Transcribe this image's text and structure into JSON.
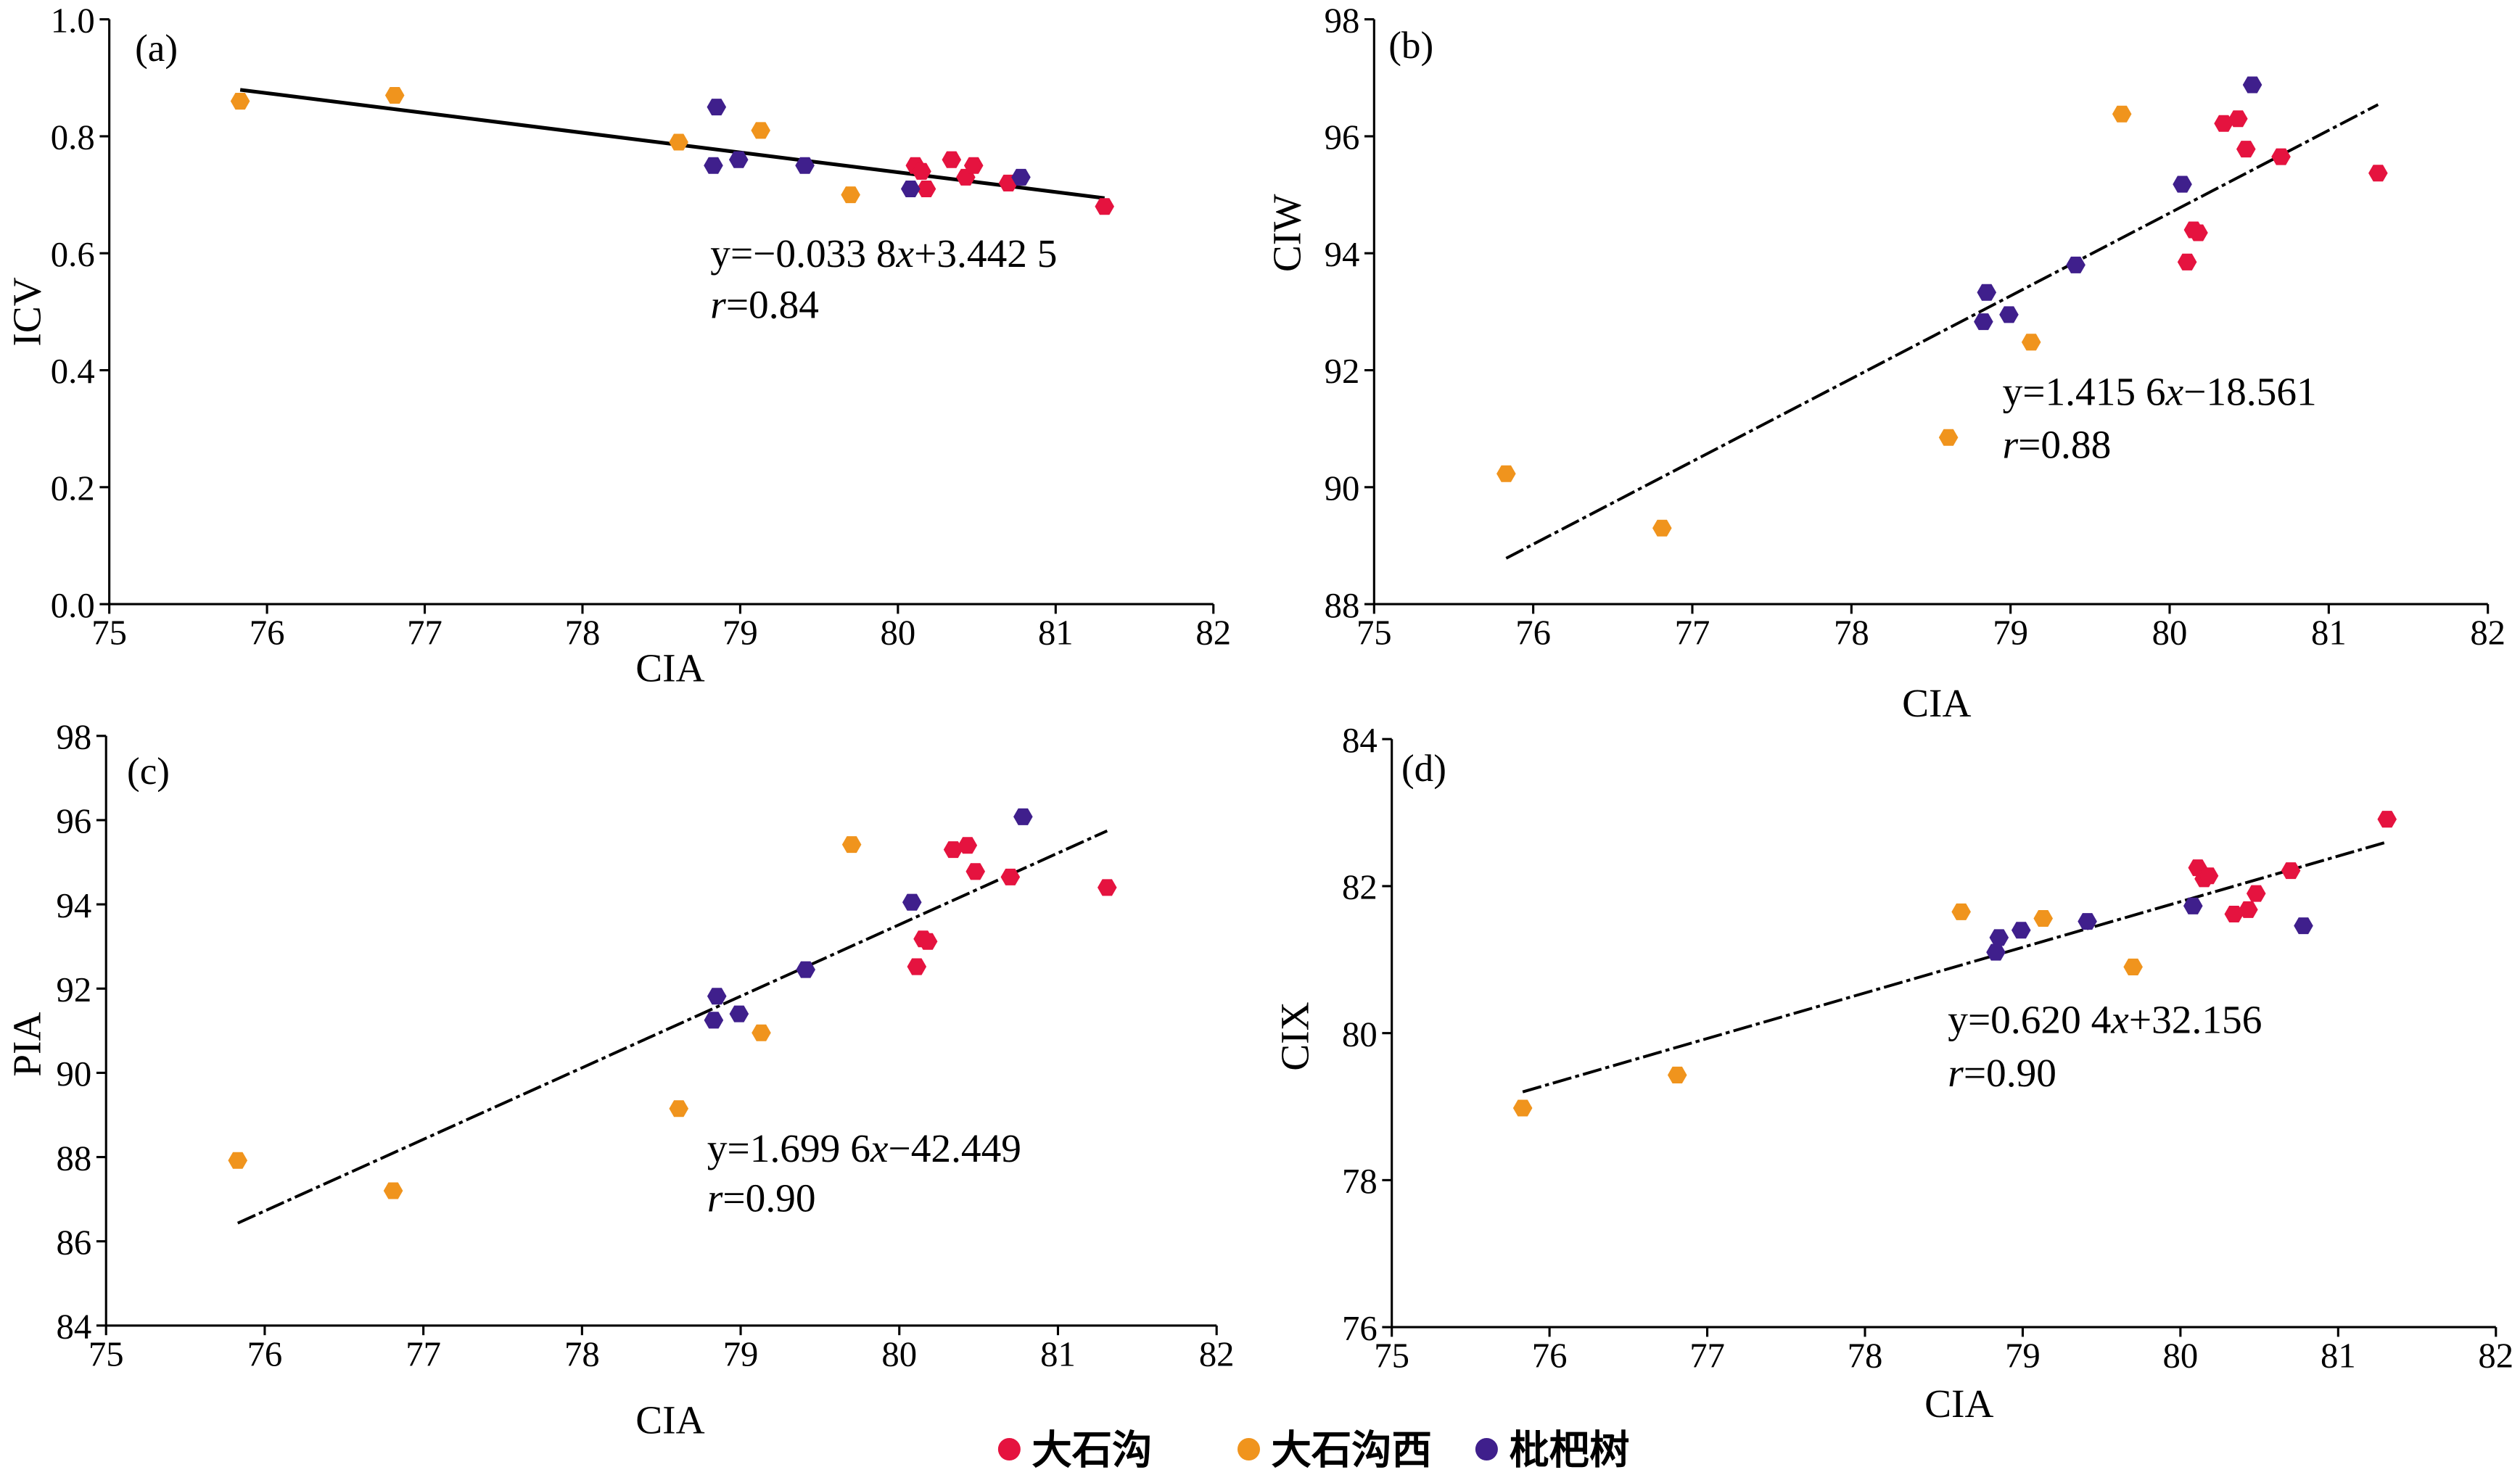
{
  "legend": {
    "position": "bottom",
    "items": [
      {
        "label": "大石沟",
        "color": "#E5133F"
      },
      {
        "label": "大石沟西",
        "color": "#F0941D"
      },
      {
        "label": "枇杷树",
        "color": "#3F1F8C"
      }
    ]
  },
  "chart_data": [
    {
      "type": "scatter",
      "panel_label": "(a)",
      "xlabel": "CIA",
      "ylabel": "ICV",
      "xlim": [
        75,
        82
      ],
      "ylim": [
        0,
        1
      ],
      "xticks": [
        "75",
        "76",
        "77",
        "78",
        "79",
        "80",
        "81",
        "82"
      ],
      "yticks": [
        "0.0",
        "0.2",
        "0.4",
        "0.6",
        "0.8",
        "1.0"
      ],
      "grid": false,
      "series": [
        {
          "name": "大石沟",
          "color": "#E5133F",
          "points": [
            [
              80.11,
              0.75
            ],
            [
              80.15,
              0.74
            ],
            [
              80.18,
              0.71
            ],
            [
              80.34,
              0.76
            ],
            [
              80.43,
              0.73
            ],
            [
              80.48,
              0.75
            ],
            [
              80.7,
              0.72
            ],
            [
              81.31,
              0.68
            ]
          ]
        },
        {
          "name": "大石沟西",
          "color": "#F0941D",
          "points": [
            [
              75.83,
              0.86
            ],
            [
              76.81,
              0.87
            ],
            [
              78.61,
              0.79
            ],
            [
              79.13,
              0.81
            ],
            [
              79.7,
              0.7
            ]
          ]
        },
        {
          "name": "枇杷树",
          "color": "#3F1F8C",
          "points": [
            [
              78.83,
              0.75
            ],
            [
              78.85,
              0.85
            ],
            [
              78.99,
              0.76
            ],
            [
              79.41,
              0.75
            ],
            [
              80.08,
              0.71
            ],
            [
              80.78,
              0.73
            ]
          ]
        }
      ],
      "fit": {
        "slope": -0.0338,
        "intercept": 3.4425,
        "x_range": [
          75.83,
          81.31
        ]
      },
      "equation": "y=−0.033 8x+3.442 5",
      "r_text": "r=0.84"
    },
    {
      "type": "scatter",
      "panel_label": "(b)",
      "xlabel": "CIA",
      "ylabel": "CIW",
      "xlim": [
        75,
        82
      ],
      "ylim": [
        88,
        98
      ],
      "xticks": [
        "75",
        "76",
        "77",
        "78",
        "79",
        "80",
        "81",
        "82"
      ],
      "yticks": [
        "88",
        "90",
        "92",
        "94",
        "96",
        "98"
      ],
      "grid": false,
      "series": [
        {
          "name": "大石沟",
          "color": "#E5133F",
          "points": [
            [
              80.11,
              93.85
            ],
            [
              80.15,
              94.4
            ],
            [
              80.18,
              94.35
            ],
            [
              80.34,
              96.22
            ],
            [
              80.43,
              96.3
            ],
            [
              80.48,
              95.78
            ],
            [
              80.7,
              95.65
            ],
            [
              81.31,
              95.37
            ]
          ]
        },
        {
          "name": "大石沟西",
          "color": "#F0941D",
          "points": [
            [
              75.83,
              90.23
            ],
            [
              76.81,
              89.3
            ],
            [
              78.61,
              90.85
            ],
            [
              79.13,
              92.48
            ],
            [
              79.7,
              96.38
            ]
          ]
        },
        {
          "name": "枇杷树",
          "color": "#3F1F8C",
          "points": [
            [
              78.83,
              92.83
            ],
            [
              78.85,
              93.33
            ],
            [
              78.99,
              92.95
            ],
            [
              79.41,
              93.8
            ],
            [
              80.08,
              95.18
            ],
            [
              80.52,
              96.88
            ]
          ]
        }
      ],
      "fit": {
        "slope": 1.4156,
        "intercept": -18.561,
        "x_range": [
          75.83,
          81.31
        ]
      },
      "equation": "y=1.415 6x−18.561",
      "r_text": "r=0.88"
    },
    {
      "type": "scatter",
      "panel_label": "(c)",
      "xlabel": "CIA",
      "ylabel": "PIA",
      "xlim": [
        75,
        82
      ],
      "ylim": [
        84,
        98
      ],
      "xticks": [
        "75",
        "76",
        "77",
        "78",
        "79",
        "80",
        "81",
        "82"
      ],
      "yticks": [
        "84",
        "86",
        "88",
        "90",
        "92",
        "94",
        "96",
        "98"
      ],
      "grid": false,
      "series": [
        {
          "name": "大石沟",
          "color": "#E5133F",
          "points": [
            [
              80.11,
              92.52
            ],
            [
              80.15,
              93.18
            ],
            [
              80.18,
              93.12
            ],
            [
              80.34,
              95.3
            ],
            [
              80.43,
              95.4
            ],
            [
              80.48,
              94.78
            ],
            [
              80.7,
              94.65
            ],
            [
              81.31,
              94.4
            ]
          ]
        },
        {
          "name": "大石沟西",
          "color": "#F0941D",
          "points": [
            [
              75.83,
              87.92
            ],
            [
              76.81,
              87.2
            ],
            [
              78.61,
              89.15
            ],
            [
              79.13,
              90.95
            ],
            [
              79.7,
              95.42
            ]
          ]
        },
        {
          "name": "枇杷树",
          "color": "#3F1F8C",
          "points": [
            [
              78.83,
              91.25
            ],
            [
              78.85,
              91.82
            ],
            [
              78.99,
              91.4
            ],
            [
              79.41,
              92.45
            ],
            [
              80.08,
              94.05
            ],
            [
              80.78,
              96.08
            ]
          ]
        }
      ],
      "fit": {
        "slope": 1.6996,
        "intercept": -42.449,
        "x_range": [
          75.83,
          81.31
        ]
      },
      "equation": "y=1.699 6x−42.449",
      "r_text": "r=0.90"
    },
    {
      "type": "scatter",
      "panel_label": "(d)",
      "xlabel": "CIA",
      "ylabel": "CIX",
      "xlim": [
        75,
        82
      ],
      "ylim": [
        76,
        84
      ],
      "xticks": [
        "75",
        "76",
        "77",
        "78",
        "79",
        "80",
        "81",
        "82"
      ],
      "yticks": [
        "76",
        "78",
        "80",
        "82",
        "84"
      ],
      "grid": false,
      "series": [
        {
          "name": "大石沟",
          "color": "#E5133F",
          "points": [
            [
              80.11,
              82.25
            ],
            [
              80.15,
              82.1
            ],
            [
              80.18,
              82.14
            ],
            [
              80.34,
              81.62
            ],
            [
              80.43,
              81.68
            ],
            [
              80.48,
              81.9
            ],
            [
              80.7,
              82.21
            ],
            [
              81.31,
              82.91
            ]
          ]
        },
        {
          "name": "大石沟西",
          "color": "#F0941D",
          "points": [
            [
              75.83,
              78.98
            ],
            [
              76.81,
              79.43
            ],
            [
              78.61,
              81.65
            ],
            [
              79.13,
              81.56
            ],
            [
              79.7,
              80.9
            ]
          ]
        },
        {
          "name": "枇杷树",
          "color": "#3F1F8C",
          "points": [
            [
              78.83,
              81.1
            ],
            [
              78.85,
              81.3
            ],
            [
              78.99,
              81.4
            ],
            [
              79.41,
              81.52
            ],
            [
              80.08,
              81.73
            ],
            [
              80.78,
              81.46
            ]
          ]
        }
      ],
      "fit": {
        "slope": 0.6204,
        "intercept": 32.156,
        "x_range": [
          75.83,
          81.31
        ]
      },
      "equation": "y=0.620 4x+32.156",
      "r_text": "r=0.90"
    }
  ]
}
